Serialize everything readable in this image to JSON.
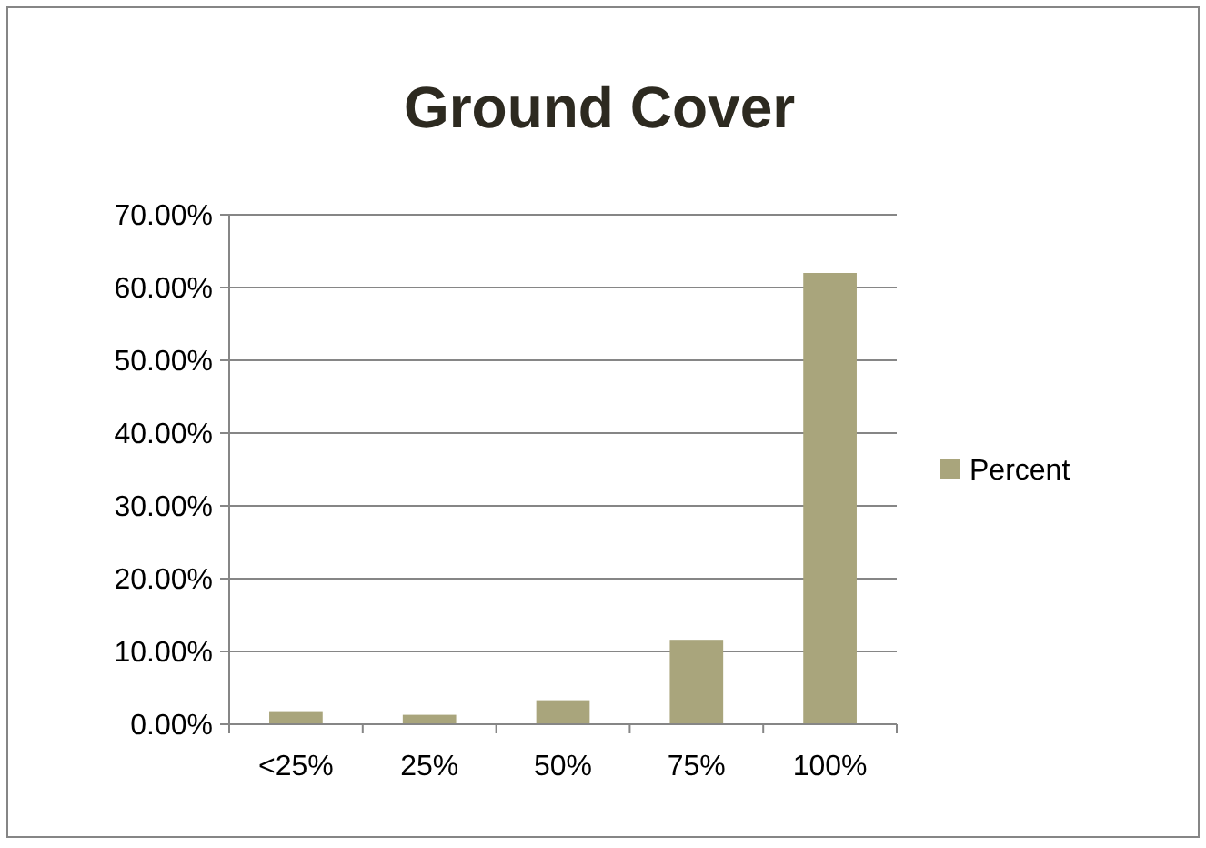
{
  "chart_data": {
    "type": "bar",
    "title": "Ground Cover",
    "categories": [
      "<25%",
      "25%",
      "50%",
      "75%",
      "100%"
    ],
    "series": [
      {
        "name": "Percent",
        "color": "#a9a57c",
        "values": [
          1.8,
          1.3,
          3.3,
          11.6,
          62.0
        ]
      }
    ],
    "ylim": [
      0,
      70
    ],
    "yticks": [
      {
        "value": 0,
        "label": "0.00%"
      },
      {
        "value": 10,
        "label": "10.00%"
      },
      {
        "value": 20,
        "label": "20.00%"
      },
      {
        "value": 30,
        "label": "30.00%"
      },
      {
        "value": 40,
        "label": "40.00%"
      },
      {
        "value": 50,
        "label": "50.00%"
      },
      {
        "value": 60,
        "label": "60.00%"
      },
      {
        "value": 70,
        "label": "70.00%"
      }
    ],
    "grid": "y",
    "legend": "right"
  }
}
